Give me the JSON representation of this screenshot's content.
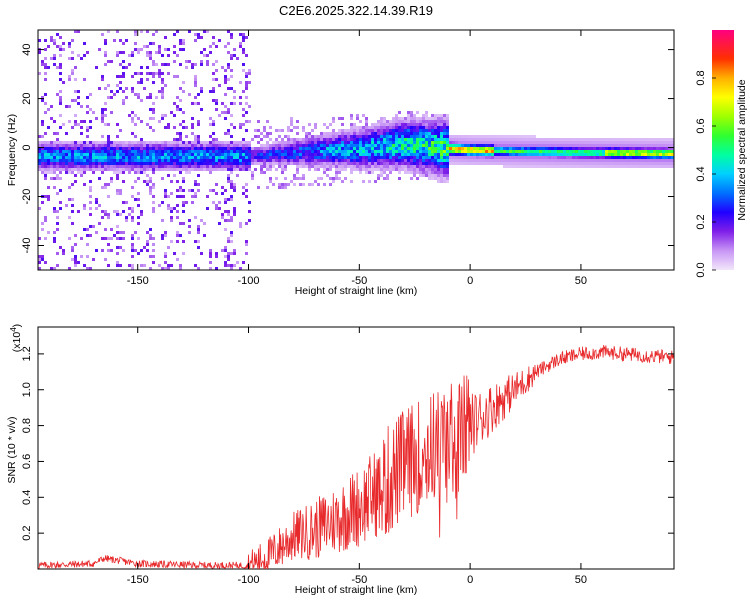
{
  "title": "C2E6.2025.322.14.39.R19",
  "chart_data": [
    {
      "type": "heatmap",
      "name": "spectrogram",
      "xlabel": "Height of straight line (km)",
      "ylabel": "Frequency (Hz)",
      "xlim": [
        -195,
        92
      ],
      "ylim": [
        -50,
        48
      ],
      "xticks": [
        -150,
        -100,
        -50,
        0,
        50
      ],
      "yticks": [
        -40,
        -20,
        0,
        20,
        40
      ],
      "ytick_labels": [
        "-40",
        "-20",
        "0",
        "20",
        "40"
      ],
      "xtick_labels": [
        "-150",
        "-100",
        "-50",
        "0",
        "50"
      ],
      "ridge": {
        "x": [
          -195,
          -150,
          -100,
          -75,
          -50,
          -30,
          -20,
          -10,
          0,
          20,
          50,
          92
        ],
        "freq": [
          -3,
          -3,
          -3,
          -1,
          0,
          2,
          1,
          0,
          -0.5,
          -1,
          -1.5,
          -2
        ]
      },
      "colorbar": {
        "label": "Normalized spectral amplitude",
        "range": [
          0,
          1
        ],
        "ticks": [
          0.0,
          0.2,
          0.4,
          0.6,
          0.8
        ],
        "tick_labels": [
          "0.0",
          "0.2",
          "0.4",
          "0.6",
          "0.8"
        ],
        "colors": [
          "#f2e6fa",
          "#b070f0",
          "#7000e0",
          "#0000ff",
          "#00c0ff",
          "#00ff80",
          "#60ff00",
          "#ffff00",
          "#ff8000",
          "#ff0000",
          "#ff0080"
        ]
      }
    },
    {
      "type": "line",
      "name": "snr",
      "xlabel": "Height of straight line (km)",
      "ylabel": "SNR (10 * v/v)",
      "multiplier_base": "(x10",
      "multiplier_exp": "4",
      "multiplier_end": ")",
      "xlim": [
        -195,
        92
      ],
      "ylim": [
        0,
        1.35
      ],
      "xticks": [
        -150,
        -100,
        -50,
        0,
        50
      ],
      "xtick_labels": [
        "-150",
        "-100",
        "-50",
        "0",
        "50"
      ],
      "yticks": [
        0.2,
        0.4,
        0.6,
        0.8,
        1.0,
        1.2
      ],
      "ytick_labels": [
        "0.2",
        "0.4",
        "0.6",
        "0.8",
        "1.0",
        "1.2"
      ],
      "color": "#e8292b",
      "trend": {
        "x": [
          -195,
          -170,
          -165,
          -160,
          -150,
          -120,
          -100,
          -90,
          -80,
          -70,
          -60,
          -50,
          -40,
          -30,
          -20,
          -15,
          -10,
          -5,
          0,
          10,
          20,
          30,
          40,
          50,
          60,
          70,
          80,
          92
        ],
        "y": [
          0.02,
          0.03,
          0.06,
          0.05,
          0.03,
          0.02,
          0.02,
          0.08,
          0.18,
          0.22,
          0.28,
          0.35,
          0.45,
          0.58,
          0.65,
          0.7,
          0.72,
          0.75,
          0.8,
          0.9,
          1.0,
          1.1,
          1.17,
          1.2,
          1.21,
          1.2,
          1.19,
          1.18
        ]
      }
    }
  ]
}
